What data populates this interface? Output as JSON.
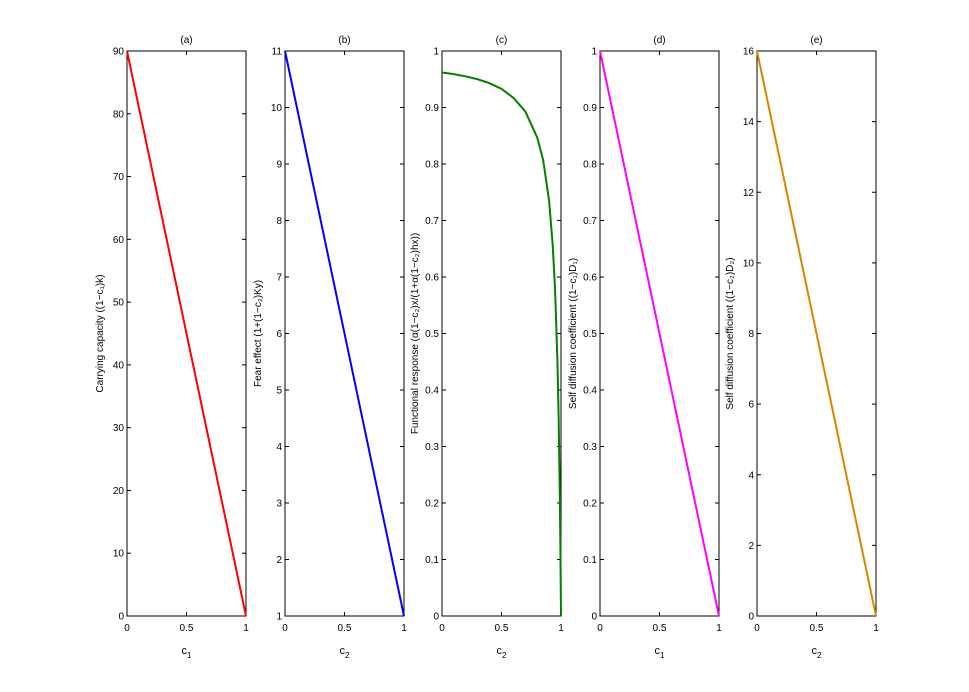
{
  "chart_data": [
    {
      "type": "line",
      "panel_title": "(a)",
      "xlabel": "c",
      "xlabel_sub": "1",
      "ylabel": "Carrying capacity ((1−c₁)k)",
      "xlim": [
        0,
        1
      ],
      "ylim": [
        0,
        90
      ],
      "xticks": [
        0,
        0.5,
        1
      ],
      "xtick_labels": [
        "0",
        "0.5",
        "1"
      ],
      "yticks": [
        0,
        10,
        20,
        30,
        40,
        50,
        60,
        70,
        80,
        90
      ],
      "ytick_labels": [
        "0",
        "10",
        "20",
        "30",
        "40",
        "50",
        "60",
        "70",
        "80",
        "90"
      ],
      "color": "#ff0000",
      "series": [
        {
          "x": [
            0,
            1
          ],
          "y": [
            90,
            0
          ]
        }
      ]
    },
    {
      "type": "line",
      "panel_title": "(b)",
      "xlabel": "c",
      "xlabel_sub": "2",
      "ylabel": "Fear effect (1+(1−c₂)Ky)",
      "xlim": [
        0,
        1
      ],
      "ylim": [
        1,
        11
      ],
      "xticks": [
        0,
        0.5,
        1
      ],
      "xtick_labels": [
        "0",
        "0.5",
        "1"
      ],
      "yticks": [
        1,
        2,
        3,
        4,
        5,
        6,
        7,
        8,
        9,
        10,
        11
      ],
      "ytick_labels": [
        "1",
        "2",
        "3",
        "4",
        "5",
        "6",
        "7",
        "8",
        "9",
        "10",
        "11"
      ],
      "color": "#0000ff",
      "series": [
        {
          "x": [
            0,
            1
          ],
          "y": [
            11,
            1
          ]
        }
      ]
    },
    {
      "type": "line",
      "panel_title": "(c)",
      "xlabel": "c",
      "xlabel_sub": "2",
      "ylabel": "Functional response (α(1−c₂)x/(1+α(1−c₂)hx))",
      "xlim": [
        0,
        1
      ],
      "ylim": [
        0,
        1
      ],
      "xticks": [
        0,
        0.5,
        1
      ],
      "xtick_labels": [
        "0",
        "0.5",
        "1"
      ],
      "yticks": [
        0,
        0.1,
        0.2,
        0.3,
        0.4,
        0.5,
        0.6,
        0.7,
        0.8,
        0.9,
        1
      ],
      "ytick_labels": [
        "0",
        "0.1",
        "0.2",
        "0.3",
        "0.4",
        "0.5",
        "0.6",
        "0.7",
        "0.8",
        "0.9",
        "1"
      ],
      "color": "#008000",
      "series": [
        {
          "x": [
            0,
            0.1,
            0.2,
            0.3,
            0.4,
            0.5,
            0.6,
            0.7,
            0.8,
            0.85,
            0.9,
            0.93,
            0.95,
            0.97,
            0.98,
            0.99,
            0.995,
            1
          ],
          "y": [
            0.962,
            0.959,
            0.955,
            0.95,
            0.943,
            0.933,
            0.917,
            0.893,
            0.847,
            0.807,
            0.735,
            0.657,
            0.579,
            0.451,
            0.354,
            0.216,
            0.121,
            0
          ]
        }
      ]
    },
    {
      "type": "line",
      "panel_title": "(d)",
      "xlabel": "c",
      "xlabel_sub": "1",
      "ylabel": "Self diffusion coefficient ((1−c₁)D₁)",
      "xlim": [
        0,
        1
      ],
      "ylim": [
        0,
        1
      ],
      "xticks": [
        0,
        0.5,
        1
      ],
      "xtick_labels": [
        "0",
        "0.5",
        "1"
      ],
      "yticks": [
        0,
        0.1,
        0.2,
        0.3,
        0.4,
        0.5,
        0.6,
        0.7,
        0.8,
        0.9,
        1
      ],
      "ytick_labels": [
        "0",
        "0.1",
        "0.2",
        "0.3",
        "0.4",
        "0.5",
        "0.6",
        "0.7",
        "0.8",
        "0.9",
        "1"
      ],
      "color": "#ff00ff",
      "series": [
        {
          "x": [
            0,
            1
          ],
          "y": [
            1,
            0
          ]
        }
      ]
    },
    {
      "type": "line",
      "panel_title": "(e)",
      "xlabel": "c",
      "xlabel_sub": "2",
      "ylabel": "Self diffusion coefficient ((1−c₂)D₂)",
      "xlim": [
        0,
        1
      ],
      "ylim": [
        0,
        16
      ],
      "xticks": [
        0,
        0.5,
        1
      ],
      "xtick_labels": [
        "0",
        "0.5",
        "1"
      ],
      "yticks": [
        0,
        2,
        4,
        6,
        8,
        10,
        12,
        14,
        16
      ],
      "ytick_labels": [
        "0",
        "2",
        "4",
        "6",
        "8",
        "10",
        "12",
        "14",
        "16"
      ],
      "color": "#d98500",
      "series": [
        {
          "x": [
            0,
            1
          ],
          "y": [
            16,
            0
          ]
        }
      ]
    }
  ]
}
